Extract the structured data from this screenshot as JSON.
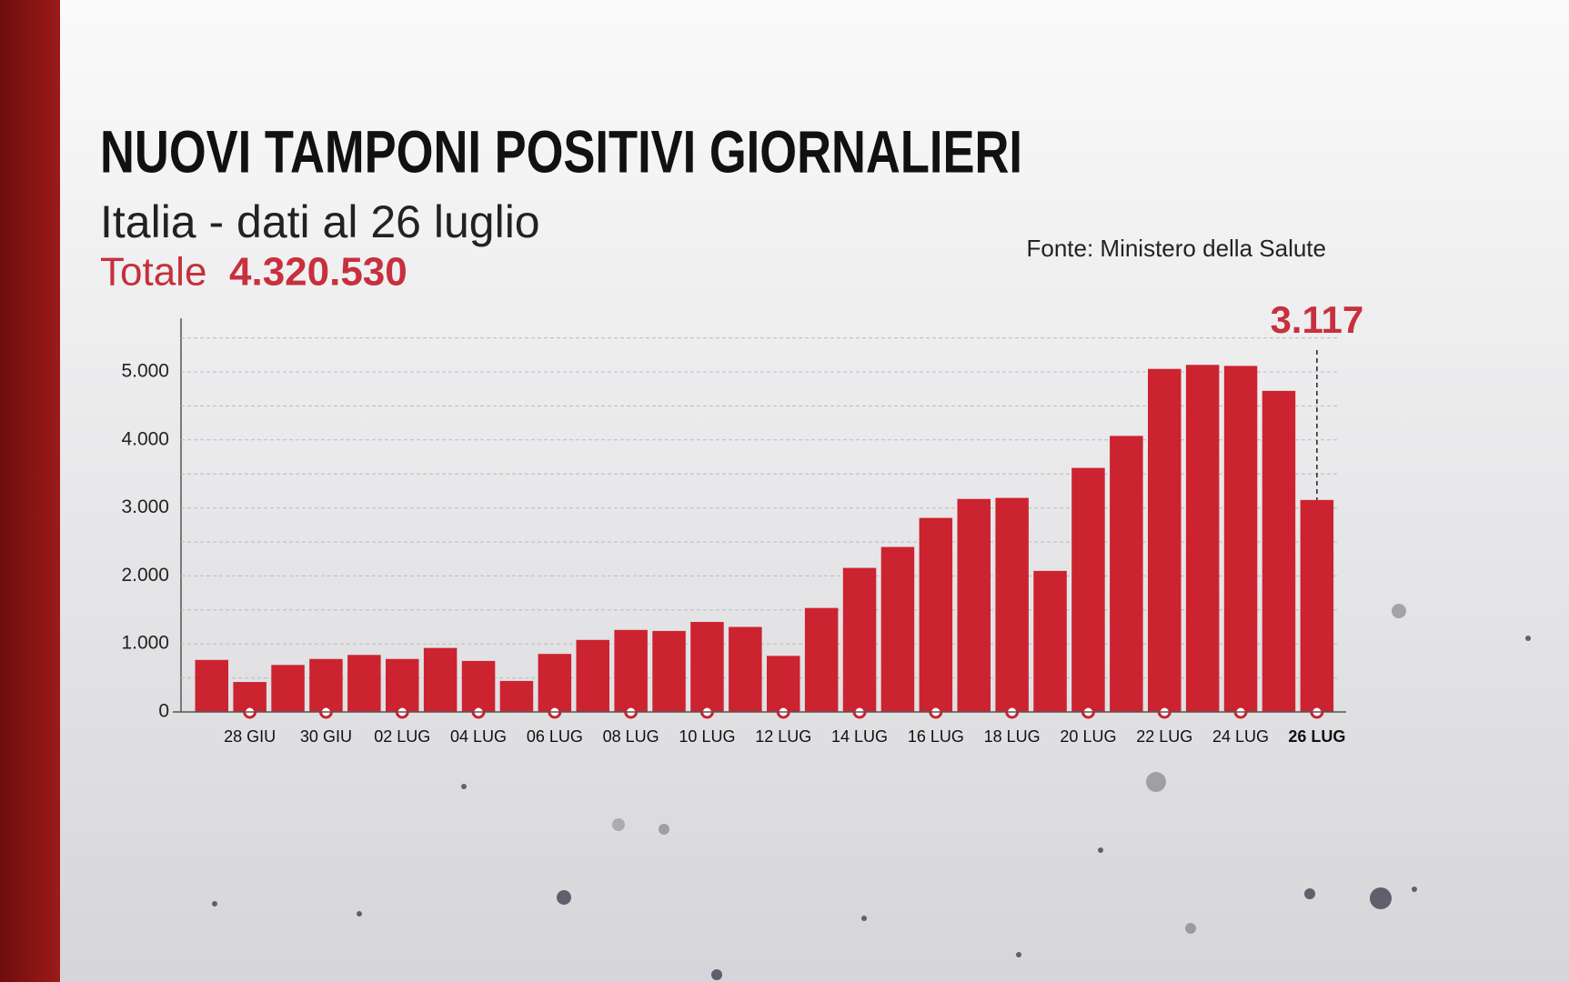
{
  "chart_data": {
    "type": "bar",
    "title": "NUOVI TAMPONI POSITIVI GIORNALIERI",
    "subtitle": "Italia - dati al 26 luglio",
    "total_label": "Totale",
    "total_text": "4.320.530",
    "source": "Fonte: Ministero della Salute",
    "categories": [
      null,
      "28 GIU",
      null,
      "30 GIU",
      null,
      "02 LUG",
      null,
      "04 LUG",
      null,
      "06 LUG",
      null,
      "08 LUG",
      null,
      "10 LUG",
      null,
      "12 LUG",
      null,
      "14 LUG",
      null,
      "16 LUG",
      null,
      "18 LUG",
      null,
      "20 LUG",
      null,
      "22 LUG",
      null,
      "24 LUG",
      null,
      "26 LUG"
    ],
    "values": [
      765,
      441,
      691,
      779,
      838,
      779,
      941,
      750,
      456,
      853,
      1059,
      1206,
      1191,
      1324,
      1250,
      824,
      1529,
      2118,
      2426,
      2853,
      3132,
      3147,
      2074,
      3588,
      4059,
      5044,
      5103,
      5088,
      4721,
      3117
    ],
    "value_labels": [
      null,
      null,
      null,
      null,
      null,
      null,
      null,
      null,
      null,
      null,
      null,
      null,
      null,
      null,
      null,
      null,
      null,
      null,
      null,
      null,
      null,
      null,
      null,
      null,
      null,
      null,
      null,
      null,
      null,
      "3.117"
    ],
    "color": "#cc2330",
    "highlight_color": "#c7303c",
    "ylim": [
      0,
      5800
    ],
    "yticks": [
      0,
      {
        "value": 1000,
        "label": "1.000"
      },
      {
        "value": 2000,
        "label": "2.000"
      },
      {
        "value": 3000,
        "label": "3.000"
      },
      {
        "value": 4000,
        "label": "4.000"
      },
      {
        "value": 5000,
        "label": "5.000"
      }
    ],
    "minor_gridlines": [
      500,
      1500,
      2500,
      3500,
      4500,
      5500
    ],
    "grid": true
  }
}
